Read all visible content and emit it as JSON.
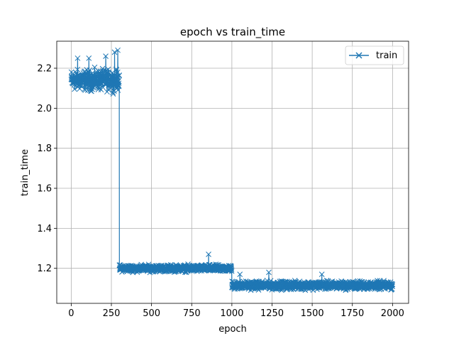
{
  "chart_data": {
    "type": "line",
    "title": "epoch vs train_time",
    "xlabel": "epoch",
    "ylabel": "train_time",
    "xlim": [
      -90,
      2100
    ],
    "ylim": [
      1.025,
      2.335
    ],
    "xticks": [
      0,
      250,
      500,
      750,
      1000,
      1250,
      1500,
      1750,
      2000
    ],
    "yticks": [
      1.2,
      1.4,
      1.6,
      1.8,
      2.0,
      2.2
    ],
    "xtick_labels": [
      "0",
      "250",
      "500",
      "750",
      "1000",
      "1250",
      "1500",
      "1750",
      "2000"
    ],
    "ytick_labels": [
      "1.2",
      "1.4",
      "1.6",
      "1.8",
      "2.0",
      "2.2"
    ],
    "grid": true,
    "legend_position": "top-right",
    "marker": "x",
    "color": "#1f77b4",
    "series": [
      {
        "name": "train",
        "segments": [
          {
            "x_start": 0,
            "x_end": 299,
            "mean": 2.14,
            "spread": 0.045
          },
          {
            "x_start": 300,
            "x_end": 999,
            "mean": 1.2,
            "spread": 0.015
          },
          {
            "x_start": 1000,
            "x_end": 2000,
            "mean": 1.115,
            "spread": 0.018
          }
        ],
        "outliers": [
          {
            "x": 40,
            "y": 2.25
          },
          {
            "x": 110,
            "y": 2.25
          },
          {
            "x": 215,
            "y": 2.26
          },
          {
            "x": 270,
            "y": 2.28
          },
          {
            "x": 290,
            "y": 2.29
          },
          {
            "x": 855,
            "y": 1.27
          },
          {
            "x": 1050,
            "y": 1.17
          },
          {
            "x": 1230,
            "y": 1.18
          },
          {
            "x": 1560,
            "y": 1.17
          }
        ]
      }
    ]
  }
}
